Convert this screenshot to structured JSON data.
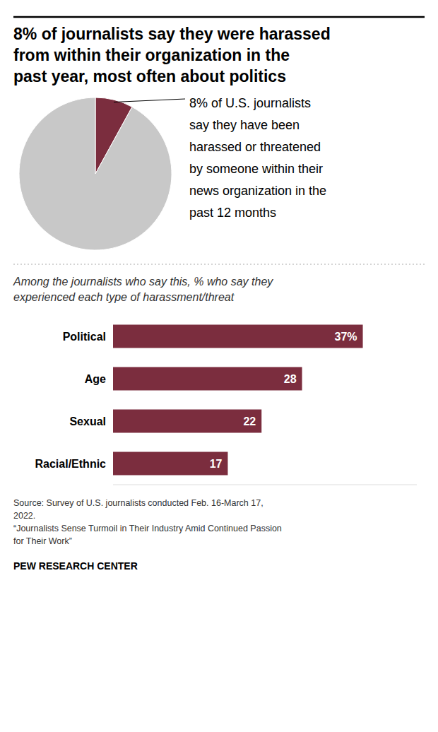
{
  "chart_data": [
    {
      "type": "pie",
      "title": "8% of journalists say they were harassed\nfrom within their organization in the\npast year, most often about politics",
      "values": [
        8,
        92
      ],
      "colors": [
        "#7b2d3e",
        "#c8c8c8"
      ],
      "annotation": [
        "8% of U.S. journalists",
        "say they have been",
        "harassed or threatened",
        "by someone within their",
        "news organization in the",
        "past 12 months"
      ]
    },
    {
      "type": "bar",
      "orientation": "horizontal",
      "subtitle": "Among the journalists who say this, % who say they\nexperienced each type of harassment/threat",
      "categories": [
        "Political",
        "Age",
        "Sexual",
        "Racial/Ethnic"
      ],
      "values": [
        37,
        28,
        22,
        17
      ],
      "value_labels": [
        "37%",
        "28",
        "22",
        "17"
      ],
      "data_labels": true,
      "color": "#7b2d3e",
      "xlim": [
        0,
        45
      ],
      "tick_labels": false,
      "source": "Source: Survey of U.S. journalists conducted Feb. 16-March 17,\n2022.\n“Journalists Sense Turmoil in Their Industry Amid Continued Passion\nfor Their Work”",
      "footer": "PEW RESEARCH CENTER"
    }
  ]
}
